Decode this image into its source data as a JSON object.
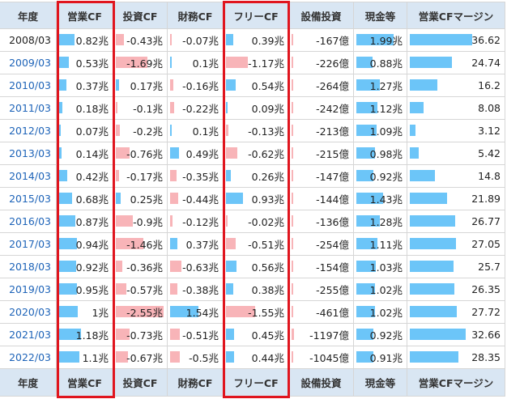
{
  "table": {
    "headers": [
      "年度",
      "営業CF",
      "投資CF",
      "財務CF",
      "フリーCF",
      "設備投資",
      "現金等",
      "営業CFマージン"
    ],
    "rows": [
      [
        "2008/03",
        "0.82兆",
        "-0.43兆",
        "-0.07兆",
        "0.39兆",
        "-167億",
        "1.99兆",
        "36.62"
      ],
      [
        "2009/03",
        "0.53兆",
        "-1.69兆",
        "0.1兆",
        "-1.17兆",
        "-226億",
        "0.88兆",
        "24.74"
      ],
      [
        "2010/03",
        "0.37兆",
        "0.17兆",
        "-0.16兆",
        "0.54兆",
        "-264億",
        "1.27兆",
        "16.2"
      ],
      [
        "2011/03",
        "0.18兆",
        "-0.1兆",
        "-0.22兆",
        "0.09兆",
        "-242億",
        "1.12兆",
        "8.08"
      ],
      [
        "2012/03",
        "0.07兆",
        "-0.2兆",
        "0.1兆",
        "-0.13兆",
        "-213億",
        "1.09兆",
        "3.12"
      ],
      [
        "2013/03",
        "0.14兆",
        "-0.76兆",
        "0.49兆",
        "-0.62兆",
        "-215億",
        "0.98兆",
        "5.42"
      ],
      [
        "2014/03",
        "0.42兆",
        "-0.17兆",
        "-0.35兆",
        "0.26兆",
        "-147億",
        "0.92兆",
        "14.8"
      ],
      [
        "2015/03",
        "0.68兆",
        "0.25兆",
        "-0.44兆",
        "0.93兆",
        "-144億",
        "1.43兆",
        "21.89"
      ],
      [
        "2016/03",
        "0.87兆",
        "-0.9兆",
        "-0.12兆",
        "-0.02兆",
        "-136億",
        "1.28兆",
        "26.77"
      ],
      [
        "2017/03",
        "0.94兆",
        "-1.46兆",
        "0.37兆",
        "-0.51兆",
        "-254億",
        "1.11兆",
        "27.05"
      ],
      [
        "2018/03",
        "0.92兆",
        "-0.36兆",
        "-0.63兆",
        "0.56兆",
        "-154億",
        "1.03兆",
        "25.7"
      ],
      [
        "2019/03",
        "0.95兆",
        "-0.57兆",
        "-0.38兆",
        "0.38兆",
        "-255億",
        "1.02兆",
        "26.35"
      ],
      [
        "2020/03",
        "1兆",
        "-2.55兆",
        "1.54兆",
        "-1.55兆",
        "-461億",
        "1.02兆",
        "27.72"
      ],
      [
        "2021/03",
        "1.18兆",
        "-0.73兆",
        "-0.51兆",
        "0.45兆",
        "-1197億",
        "0.92兆",
        "32.66"
      ],
      [
        "2022/03",
        "1.1兆",
        "-0.67兆",
        "-0.5兆",
        "0.44兆",
        "-1045億",
        "0.91兆",
        "28.35"
      ]
    ],
    "footer": [
      "年度",
      "営業CF",
      "投資CF",
      "財務CF",
      "フリーCF",
      "設備投資",
      "現金等",
      "営業CFマージン"
    ]
  }
}
